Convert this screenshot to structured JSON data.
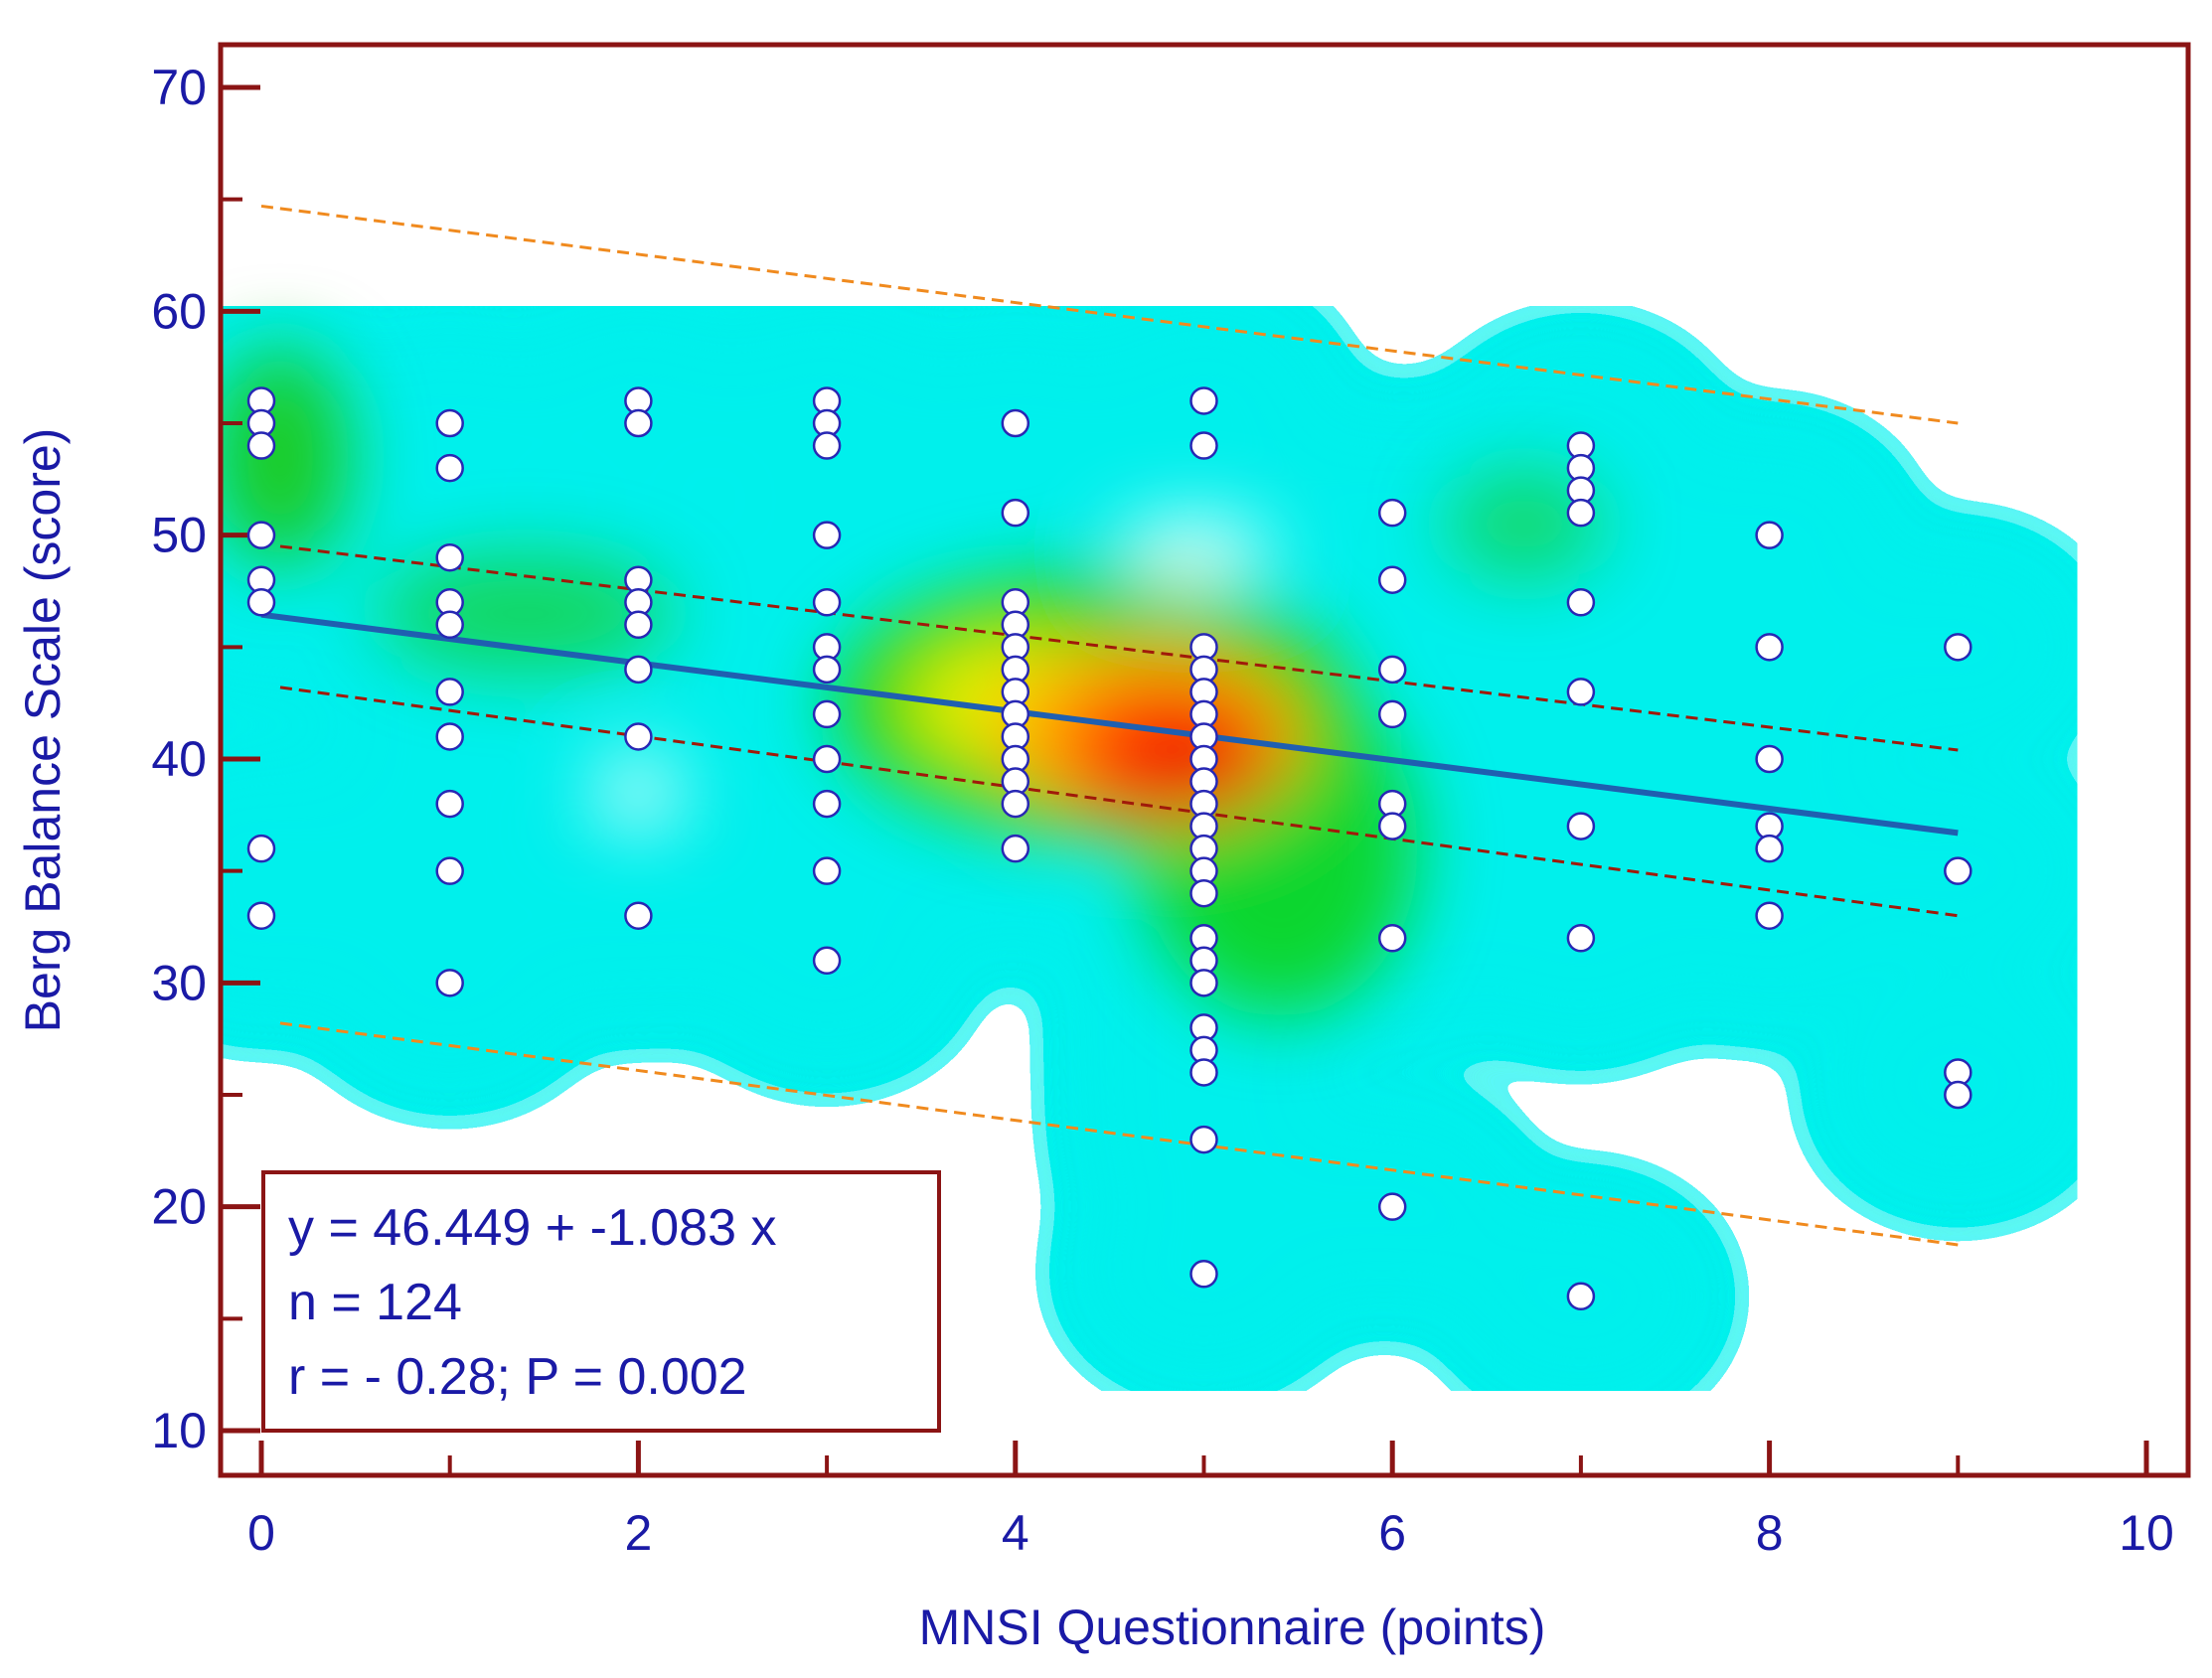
{
  "chart_data": {
    "type": "scatter",
    "xlabel": "MNSI Questionnaire (points)",
    "ylabel": "Berg Balance Scale (score)",
    "xlim": [
      0,
      10
    ],
    "ylim": [
      10,
      70
    ],
    "x_ticks": [
      0,
      2,
      4,
      6,
      8,
      10
    ],
    "x_minor_ticks": [
      1,
      3,
      5,
      7,
      9
    ],
    "y_ticks": [
      10,
      20,
      30,
      40,
      50,
      60,
      70
    ],
    "y_minor_ticks": [
      15,
      25,
      35,
      45,
      55,
      65
    ],
    "grid": false,
    "colors": {
      "frame": "#8b1414",
      "axis_text": "#1a1aa6",
      "regression": "#1f5fb0",
      "confidence": "#a01a0a",
      "prediction": "#f08a1e",
      "marker_edge": "#2828b4"
    },
    "series": [
      {
        "name": "observations",
        "points": [
          [
            0,
            56
          ],
          [
            0,
            55
          ],
          [
            0,
            54
          ],
          [
            0,
            50
          ],
          [
            0,
            48
          ],
          [
            0,
            47
          ],
          [
            0,
            36
          ],
          [
            0,
            33
          ],
          [
            1,
            55
          ],
          [
            1,
            53
          ],
          [
            1,
            49
          ],
          [
            1,
            47
          ],
          [
            1,
            46
          ],
          [
            1,
            43
          ],
          [
            1,
            41
          ],
          [
            1,
            38
          ],
          [
            1,
            35
          ],
          [
            1,
            30
          ],
          [
            2,
            56
          ],
          [
            2,
            55
          ],
          [
            2,
            48
          ],
          [
            2,
            47
          ],
          [
            2,
            46
          ],
          [
            2,
            44
          ],
          [
            2,
            41
          ],
          [
            2,
            33
          ],
          [
            3,
            56
          ],
          [
            3,
            55
          ],
          [
            3,
            54
          ],
          [
            3,
            50
          ],
          [
            3,
            47
          ],
          [
            3,
            45
          ],
          [
            3,
            44
          ],
          [
            3,
            42
          ],
          [
            3,
            40
          ],
          [
            3,
            38
          ],
          [
            3,
            35
          ],
          [
            3,
            31
          ],
          [
            4,
            55
          ],
          [
            4,
            51
          ],
          [
            4,
            47
          ],
          [
            4,
            46
          ],
          [
            4,
            45
          ],
          [
            4,
            44
          ],
          [
            4,
            43
          ],
          [
            4,
            42
          ],
          [
            4,
            41
          ],
          [
            4,
            40
          ],
          [
            4,
            39
          ],
          [
            4,
            38
          ],
          [
            4,
            36
          ],
          [
            5,
            56
          ],
          [
            5,
            54
          ],
          [
            5,
            45
          ],
          [
            5,
            44
          ],
          [
            5,
            43
          ],
          [
            5,
            42
          ],
          [
            5,
            41
          ],
          [
            5,
            40
          ],
          [
            5,
            39
          ],
          [
            5,
            38
          ],
          [
            5,
            37
          ],
          [
            5,
            36
          ],
          [
            5,
            35
          ],
          [
            5,
            34
          ],
          [
            5,
            32
          ],
          [
            5,
            31
          ],
          [
            5,
            30
          ],
          [
            5,
            28
          ],
          [
            5,
            27
          ],
          [
            5,
            26
          ],
          [
            5,
            23
          ],
          [
            5,
            17
          ],
          [
            6,
            51
          ],
          [
            6,
            48
          ],
          [
            6,
            44
          ],
          [
            6,
            42
          ],
          [
            6,
            38
          ],
          [
            6,
            37
          ],
          [
            6,
            32
          ],
          [
            6,
            20
          ],
          [
            7,
            54
          ],
          [
            7,
            53
          ],
          [
            7,
            52
          ],
          [
            7,
            51
          ],
          [
            7,
            47
          ],
          [
            7,
            43
          ],
          [
            7,
            37
          ],
          [
            7,
            32
          ],
          [
            7,
            16
          ],
          [
            8,
            50
          ],
          [
            8,
            45
          ],
          [
            8,
            40
          ],
          [
            8,
            37
          ],
          [
            8,
            36
          ],
          [
            8,
            33
          ],
          [
            9,
            45
          ],
          [
            9,
            35
          ],
          [
            9,
            26
          ],
          [
            9,
            25
          ]
        ]
      },
      {
        "name": "regression line",
        "x": [
          0,
          9
        ],
        "y": [
          46.449,
          36.7
        ]
      },
      {
        "name": "95% confidence interval (upper)",
        "x": [
          0.1,
          9
        ],
        "y": [
          49.5,
          40.4
        ]
      },
      {
        "name": "95% confidence interval (lower)",
        "x": [
          0.1,
          9
        ],
        "y": [
          43.2,
          33.0
        ]
      },
      {
        "name": "95% prediction interval (upper)",
        "x": [
          0,
          9
        ],
        "y": [
          64.7,
          55.0
        ]
      },
      {
        "name": "95% prediction interval (lower)",
        "x": [
          0.1,
          9
        ],
        "y": [
          28.2,
          18.3
        ]
      }
    ],
    "annotations": [
      "y = 46.449 + -1.083 x",
      "n = 124",
      "r = - 0.28; P = 0.002"
    ],
    "annotation_position": "bottom-left"
  }
}
